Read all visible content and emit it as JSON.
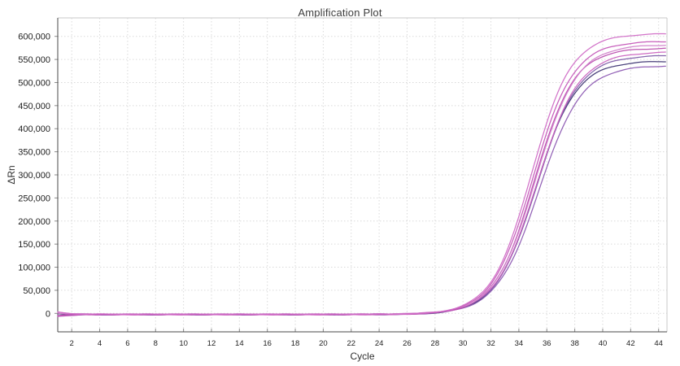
{
  "chart_data": {
    "type": "line",
    "title": "Amplification Plot",
    "xlabel": "Cycle",
    "ylabel": "ΔRn",
    "xlim": [
      1,
      44.6
    ],
    "ylim": [
      -40000,
      640000
    ],
    "grid": "dotted",
    "legend": "none",
    "x_ticks": [
      2,
      4,
      6,
      8,
      10,
      12,
      14,
      16,
      18,
      20,
      22,
      24,
      26,
      28,
      30,
      32,
      34,
      36,
      38,
      40,
      42,
      44
    ],
    "x_tick_labels": [
      "2",
      "4",
      "6",
      "8",
      "10",
      "12",
      "14",
      "16",
      "18",
      "20",
      "22",
      "24",
      "26",
      "28",
      "30",
      "32",
      "34",
      "36",
      "38",
      "40",
      "42",
      "44"
    ],
    "y_ticks": [
      0,
      50000,
      100000,
      150000,
      200000,
      250000,
      300000,
      350000,
      400000,
      450000,
      500000,
      550000,
      600000
    ],
    "y_tick_labels": [
      "0",
      "50,000",
      "100,000",
      "150,000",
      "200,000",
      "250,000",
      "300,000",
      "350,000",
      "400,000",
      "450,000",
      "500,000",
      "550,000",
      "600,000"
    ],
    "curve_shape": "sigmoid-amplification",
    "series": [
      {
        "name": "curve-1",
        "color": "#d06cc6",
        "baseline": -2000,
        "start_offset": 4500,
        "plateau": 608000,
        "midpoint_cycle": 34.9,
        "slope": 0.7,
        "end_value": 605000
      },
      {
        "name": "curve-2",
        "color": "#c455b8",
        "baseline": -2500,
        "start_offset": -4000,
        "plateau": 592000,
        "midpoint_cycle": 35.0,
        "slope": 0.69,
        "end_value": 589000
      },
      {
        "name": "curve-3",
        "color": "#d07fca",
        "baseline": -1800,
        "start_offset": 3000,
        "plateau": 584000,
        "midpoint_cycle": 35.2,
        "slope": 0.68,
        "end_value": 582000
      },
      {
        "name": "curve-4",
        "color": "#b94cae",
        "baseline": -2200,
        "start_offset": -2500,
        "plateau": 577000,
        "midpoint_cycle": 35.1,
        "slope": 0.7,
        "end_value": 574000
      },
      {
        "name": "curve-5",
        "color": "#cb63c0",
        "baseline": -2600,
        "start_offset": 5000,
        "plateau": 569000,
        "midpoint_cycle": 35.3,
        "slope": 0.67,
        "end_value": 566000
      },
      {
        "name": "curve-6",
        "color": "#7d5ba8",
        "baseline": -2000,
        "start_offset": -5000,
        "plateau": 561000,
        "midpoint_cycle": 35.3,
        "slope": 0.68,
        "end_value": 558000
      },
      {
        "name": "curve-7",
        "color": "#3d3472",
        "baseline": -2400,
        "start_offset": 2000,
        "plateau": 549000,
        "midpoint_cycle": 35.2,
        "slope": 0.69,
        "end_value": 546000
      },
      {
        "name": "curve-8",
        "color": "#8c58b2",
        "baseline": -2800,
        "start_offset": -1500,
        "plateau": 540000,
        "midpoint_cycle": 35.45,
        "slope": 0.66,
        "end_value": 537000
      }
    ]
  }
}
